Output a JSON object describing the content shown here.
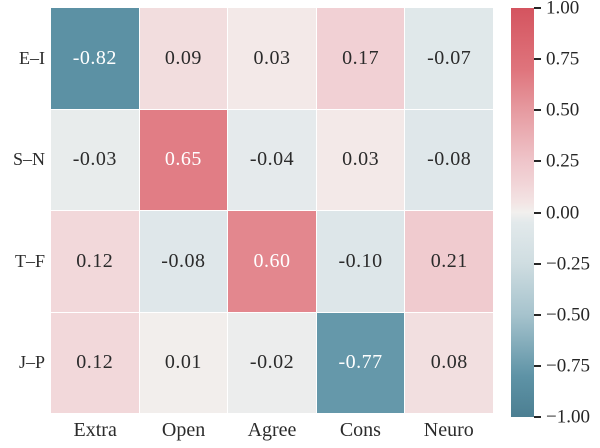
{
  "chart_data": {
    "type": "heatmap",
    "rows": [
      "E–I",
      "S–N",
      "T–F",
      "J–P"
    ],
    "columns": [
      "Extra",
      "Open",
      "Agree",
      "Cons",
      "Neuro"
    ],
    "values": [
      [
        -0.82,
        0.09,
        0.03,
        0.17,
        -0.07
      ],
      [
        -0.03,
        0.65,
        -0.04,
        0.03,
        -0.08
      ],
      [
        0.12,
        -0.08,
        0.6,
        -0.1,
        0.21
      ],
      [
        0.12,
        0.01,
        -0.02,
        -0.77,
        0.08
      ]
    ],
    "value_decimals": 2,
    "vmin": -1,
    "vmax": 1,
    "grid_line_color": "#ffffff",
    "annotation_dark_color": "#2b2b2b",
    "annotation_light_color": "#ffffff",
    "light_text_threshold": 0.5,
    "colorscale": [
      {
        "v": -1.0,
        "c": "#4c7f92"
      },
      {
        "v": -0.8,
        "c": "#5e93a6"
      },
      {
        "v": -0.5,
        "c": "#a6c3cd"
      },
      {
        "v": -0.25,
        "c": "#cfdde1"
      },
      {
        "v": -0.05,
        "c": "#e2e9eb"
      },
      {
        "v": 0.0,
        "c": "#f2f0ee"
      },
      {
        "v": 0.05,
        "c": "#f3e4e4"
      },
      {
        "v": 0.15,
        "c": "#f1d3d6"
      },
      {
        "v": 0.25,
        "c": "#efc5ca"
      },
      {
        "v": 0.5,
        "c": "#e69aa0"
      },
      {
        "v": 0.7,
        "c": "#df747c"
      },
      {
        "v": 1.0,
        "c": "#d4545f"
      }
    ],
    "colorbar": {
      "position": "right",
      "tick_labels": [
        "1.00",
        "0.75",
        "0.50",
        "0.25",
        "0.00",
        "−0.25",
        "−0.50",
        "−0.75",
        "−1.00"
      ],
      "tick_values": [
        1.0,
        0.75,
        0.5,
        0.25,
        0.0,
        -0.25,
        -0.5,
        -0.75,
        -1.0
      ],
      "tick_color": "#262626"
    },
    "legend": false,
    "grid": false,
    "title": "",
    "xlabel": "",
    "ylabel": ""
  }
}
